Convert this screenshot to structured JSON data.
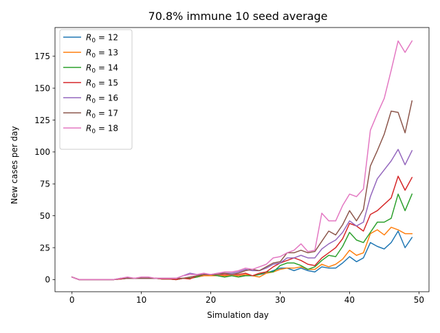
{
  "chart_data": {
    "type": "line",
    "title": "70.8% immune 10 seed average",
    "xlabel": "Simulation day",
    "ylabel": "New cases per day",
    "xlim": [
      -2.45,
      51.45
    ],
    "ylim": [
      -9.5,
      197.5
    ],
    "xticks": [
      0,
      10,
      20,
      30,
      40,
      50
    ],
    "yticks": [
      0,
      25,
      50,
      75,
      100,
      125,
      150,
      175
    ],
    "legend_position": "top-left",
    "legend_prefix": "R",
    "legend_subscript": "0",
    "x": [
      0,
      1,
      2,
      3,
      4,
      5,
      6,
      7,
      8,
      9,
      10,
      11,
      12,
      13,
      14,
      15,
      16,
      17,
      18,
      19,
      20,
      21,
      22,
      23,
      24,
      25,
      26,
      27,
      28,
      29,
      30,
      31,
      32,
      33,
      34,
      35,
      36,
      37,
      38,
      39,
      40,
      41,
      42,
      43,
      44,
      45,
      46,
      47,
      48,
      49
    ],
    "series": [
      {
        "name": "= 12",
        "color": "#1f77b4",
        "values": [
          2,
          0,
          0,
          0,
          0,
          0,
          0,
          0.5,
          1,
          1,
          1,
          1,
          1,
          0.5,
          0.5,
          0,
          1,
          1,
          2,
          3,
          3,
          3,
          2,
          3,
          3,
          3,
          3,
          4,
          5,
          7,
          9,
          9,
          7,
          9,
          7,
          6,
          10,
          9,
          9,
          13,
          18,
          14,
          17,
          29,
          26,
          24,
          29,
          38,
          25,
          33
        ]
      },
      {
        "name": "= 13",
        "color": "#ff7f0e",
        "values": [
          2,
          0,
          0,
          0,
          0,
          0,
          0,
          0.5,
          1,
          1,
          1,
          1,
          1,
          0.5,
          0.5,
          0,
          1,
          1,
          2,
          3,
          3,
          3,
          3,
          3,
          3,
          4,
          3,
          2,
          5,
          6,
          8,
          9,
          9,
          10,
          8,
          8,
          12,
          10,
          12,
          16,
          23,
          19,
          21,
          36,
          39,
          35,
          41,
          39,
          36,
          36
        ]
      },
      {
        "name": "= 14",
        "color": "#2ca02c",
        "values": [
          2,
          0,
          0,
          0,
          0,
          0,
          0,
          0.5,
          1,
          1,
          1,
          1,
          1,
          0.5,
          0.5,
          0,
          1,
          1,
          2,
          4,
          4,
          3,
          2,
          3,
          2,
          3,
          3,
          4,
          6,
          6,
          11,
          13,
          13,
          11,
          8,
          10,
          15,
          19,
          18,
          26,
          37,
          31,
          29,
          37,
          45,
          45,
          48,
          67,
          54,
          67
        ]
      },
      {
        "name": "= 15",
        "color": "#d62728",
        "values": [
          2,
          0,
          0,
          0,
          0,
          0,
          0,
          0.5,
          1,
          1,
          1,
          1,
          1,
          0.5,
          0.5,
          0,
          1,
          0.5,
          3,
          4,
          4,
          4,
          4,
          4,
          4,
          5,
          3,
          5,
          6,
          10,
          13,
          15,
          17,
          15,
          12,
          11,
          17,
          21,
          25,
          32,
          44,
          42,
          38,
          51,
          54,
          59,
          64,
          81,
          70,
          80
        ]
      },
      {
        "name": "= 16",
        "color": "#9467bd",
        "values": [
          2,
          0,
          0,
          0,
          0,
          0,
          0,
          1,
          1,
          1,
          1,
          1,
          1,
          1,
          1,
          1,
          3,
          5,
          4,
          4,
          4,
          5,
          5,
          5,
          6,
          8,
          7,
          7,
          9,
          12,
          13,
          17,
          17,
          19,
          17,
          17,
          24,
          28,
          31,
          37,
          46,
          42,
          45,
          65,
          79,
          86,
          93,
          102,
          90,
          101
        ]
      },
      {
        "name": "= 17",
        "color": "#8c564b",
        "values": [
          2,
          0,
          0,
          0,
          0,
          0,
          0,
          1,
          1,
          1,
          1,
          1,
          1,
          1,
          1,
          1,
          1,
          2,
          3,
          4,
          4,
          4,
          5,
          4,
          5,
          7,
          8,
          7,
          10,
          13,
          14,
          21,
          21,
          23,
          21,
          22,
          30,
          38,
          35,
          43,
          54,
          46,
          55,
          89,
          101,
          114,
          132,
          131,
          115,
          140
        ]
      },
      {
        "name": "= 18",
        "color": "#e377c2",
        "values": [
          2,
          0,
          0,
          0,
          0,
          0,
          0,
          1,
          2,
          1,
          2,
          2,
          1,
          1,
          1,
          1,
          3,
          4,
          4,
          5,
          4,
          5,
          6,
          6,
          7,
          9,
          8,
          10,
          12,
          17,
          18,
          21,
          23,
          28,
          22,
          23,
          52,
          46,
          46,
          58,
          67,
          65,
          71,
          117,
          130,
          142,
          164,
          187,
          178,
          187
        ]
      }
    ]
  }
}
